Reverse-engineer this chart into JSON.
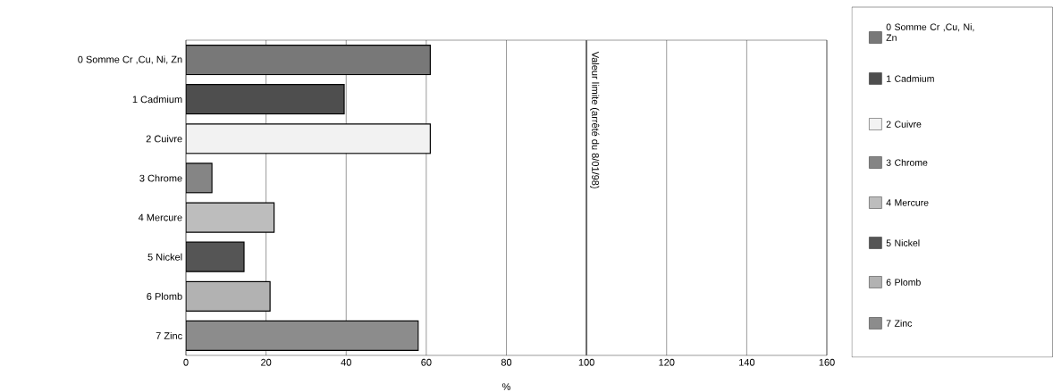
{
  "chart_data": {
    "type": "bar",
    "orientation": "horizontal",
    "categories": [
      "0 Somme Cr ,Cu, Ni, Zn",
      "1 Cadmium",
      "2 Cuivre",
      "3 Chrome",
      "4 Mercure",
      "5 Nickel",
      "6 Plomb",
      "7 Zinc"
    ],
    "values": [
      61,
      39.5,
      61,
      6.5,
      22,
      14.5,
      21,
      58
    ],
    "colors": [
      "#787878",
      "#4e4e4e",
      "#f2f2f2",
      "#858585",
      "#bdbdbd",
      "#555555",
      "#b2b2b2",
      "#8c8c8c"
    ],
    "xlim": [
      0,
      160
    ],
    "xticks": [
      0,
      20,
      40,
      60,
      80,
      100,
      120,
      140,
      160
    ],
    "xlabel": "%",
    "grid": "x",
    "legend": "right",
    "ref_lines": [
      {
        "axis": "x",
        "value": 100,
        "label": "Valeur limite (arrêté du 8/01/98)",
        "color": "#666666"
      }
    ]
  }
}
